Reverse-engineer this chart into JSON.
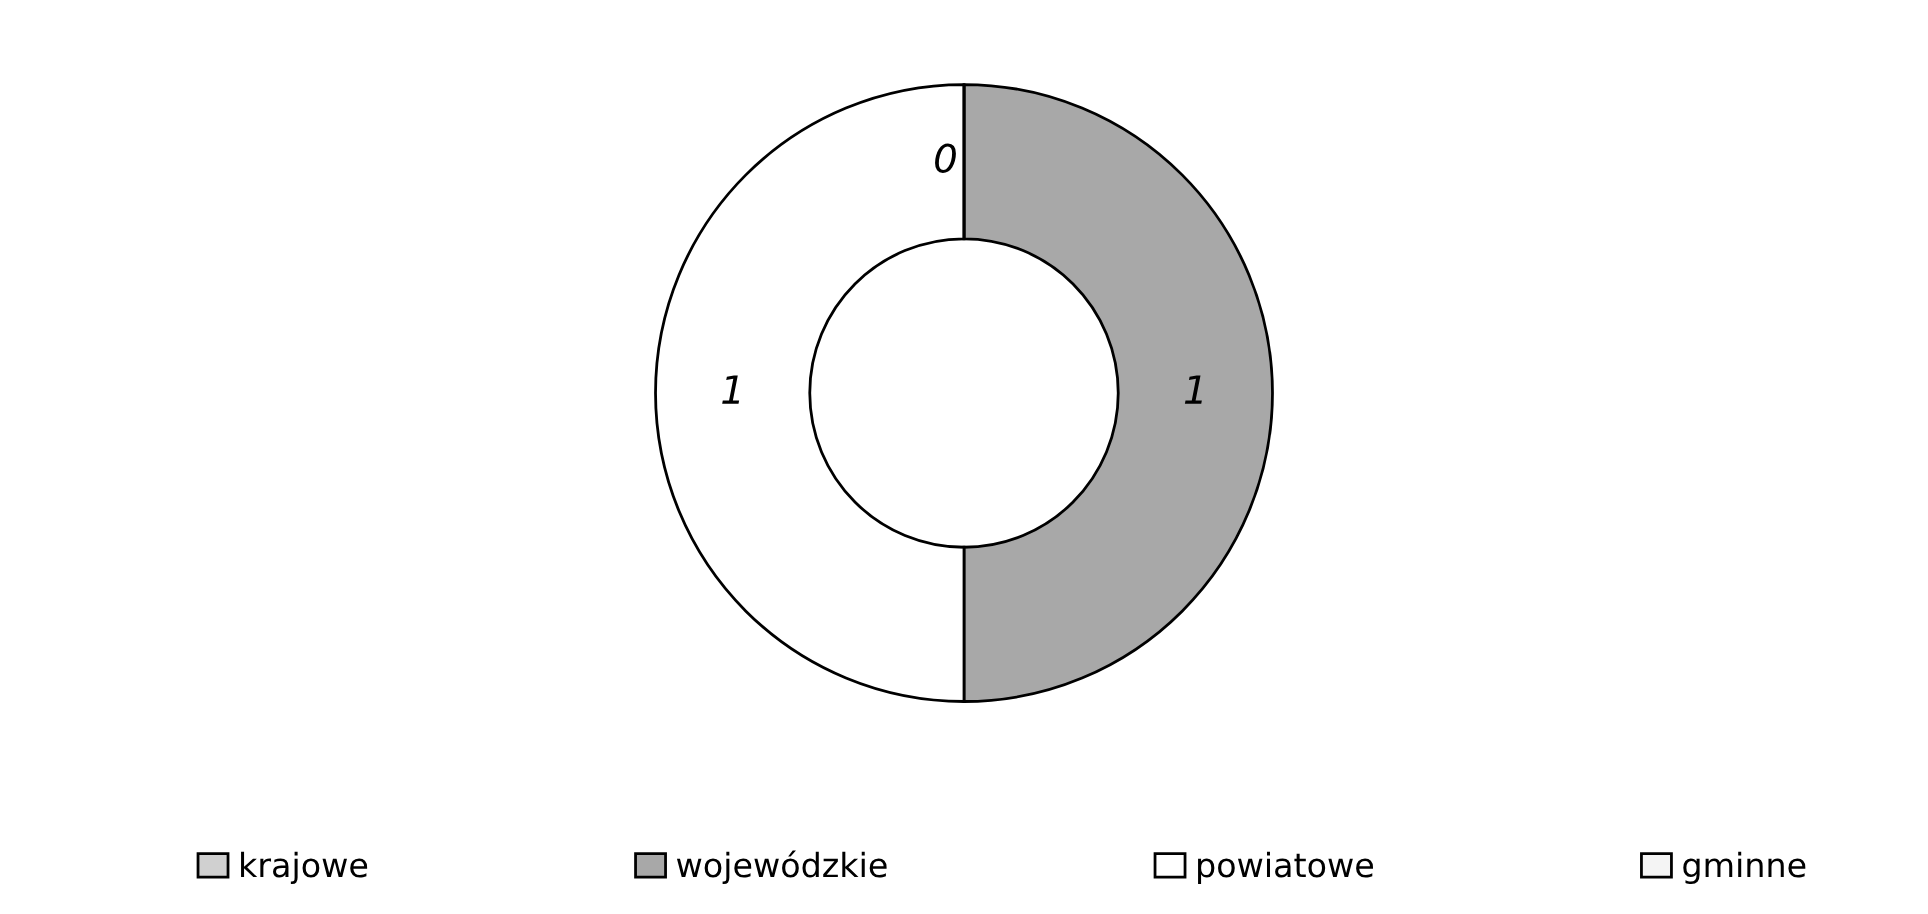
{
  "chart_data": {
    "type": "donut",
    "categories": [
      "krajowe",
      "wojewódzkie",
      "powiatowe",
      "gminne"
    ],
    "values": [
      0,
      1,
      1,
      0
    ],
    "value_labels": [
      "0",
      "1",
      "1",
      null
    ],
    "colors": [
      "#d0d0d0",
      "#a8a8a8",
      "#ffffff",
      "#f4f4f4"
    ],
    "legend": "bottom"
  }
}
